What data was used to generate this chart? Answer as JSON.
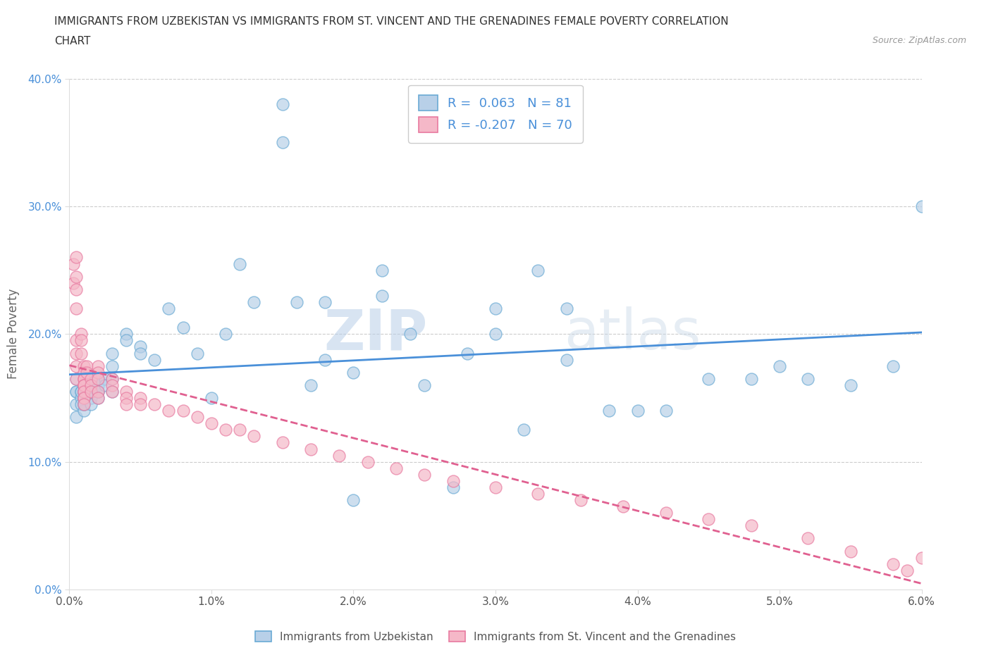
{
  "title_line1": "IMMIGRANTS FROM UZBEKISTAN VS IMMIGRANTS FROM ST. VINCENT AND THE GRENADINES FEMALE POVERTY CORRELATION",
  "title_line2": "CHART",
  "source_text": "Source: ZipAtlas.com",
  "ylabel": "Female Poverty",
  "r_uzbekistan": 0.063,
  "n_uzbekistan": 81,
  "r_stv": -0.207,
  "n_stv": 70,
  "uzbekistan_color": "#b8d0e8",
  "stv_color": "#f5b8c8",
  "uzbekistan_edge_color": "#6aaad4",
  "stv_edge_color": "#e87aa0",
  "uzbekistan_line_color": "#4a90d9",
  "stv_line_color": "#e06090",
  "legend_label_uzbekistan": "Immigrants from Uzbekistan",
  "legend_label_stv": "Immigrants from St. Vincent and the Grenadines",
  "xlim": [
    0.0,
    0.06
  ],
  "ylim": [
    0.0,
    0.4
  ],
  "xticks": [
    0.0,
    0.01,
    0.02,
    0.03,
    0.04,
    0.05,
    0.06
  ],
  "yticks": [
    0.0,
    0.1,
    0.2,
    0.3,
    0.4
  ],
  "watermark_zip": "ZIP",
  "watermark_atlas": "atlas",
  "background_color": "#ffffff",
  "uzb_x": [
    0.0005,
    0.0005,
    0.0005,
    0.0005,
    0.0005,
    0.0008,
    0.0008,
    0.0008,
    0.0008,
    0.001,
    0.001,
    0.001,
    0.001,
    0.001,
    0.001,
    0.001,
    0.001,
    0.001,
    0.001,
    0.0012,
    0.0012,
    0.0012,
    0.0015,
    0.0015,
    0.0015,
    0.0015,
    0.0015,
    0.002,
    0.002,
    0.002,
    0.002,
    0.002,
    0.002,
    0.0025,
    0.0025,
    0.003,
    0.003,
    0.003,
    0.003,
    0.004,
    0.004,
    0.005,
    0.005,
    0.006,
    0.007,
    0.008,
    0.009,
    0.01,
    0.011,
    0.012,
    0.013,
    0.015,
    0.016,
    0.017,
    0.018,
    0.02,
    0.022,
    0.024,
    0.027,
    0.03,
    0.033,
    0.035,
    0.038,
    0.04,
    0.042,
    0.045,
    0.048,
    0.05,
    0.052,
    0.055,
    0.058,
    0.06,
    0.015,
    0.018,
    0.02,
    0.022,
    0.025,
    0.028,
    0.03,
    0.032,
    0.035
  ],
  "uzb_y": [
    0.155,
    0.145,
    0.135,
    0.155,
    0.165,
    0.155,
    0.15,
    0.145,
    0.155,
    0.16,
    0.15,
    0.145,
    0.14,
    0.16,
    0.155,
    0.15,
    0.145,
    0.16,
    0.155,
    0.165,
    0.155,
    0.155,
    0.155,
    0.15,
    0.16,
    0.155,
    0.145,
    0.165,
    0.155,
    0.15,
    0.16,
    0.165,
    0.155,
    0.165,
    0.16,
    0.185,
    0.175,
    0.165,
    0.155,
    0.2,
    0.195,
    0.19,
    0.185,
    0.18,
    0.22,
    0.205,
    0.185,
    0.15,
    0.2,
    0.255,
    0.225,
    0.38,
    0.225,
    0.16,
    0.18,
    0.07,
    0.25,
    0.2,
    0.08,
    0.22,
    0.25,
    0.18,
    0.14,
    0.14,
    0.14,
    0.165,
    0.165,
    0.175,
    0.165,
    0.16,
    0.175,
    0.3,
    0.35,
    0.225,
    0.17,
    0.23,
    0.16,
    0.185,
    0.2,
    0.125,
    0.22
  ],
  "stv_x": [
    0.0003,
    0.0003,
    0.0005,
    0.0005,
    0.0005,
    0.0005,
    0.0005,
    0.0005,
    0.0005,
    0.0005,
    0.0008,
    0.0008,
    0.0008,
    0.001,
    0.001,
    0.001,
    0.001,
    0.001,
    0.001,
    0.001,
    0.001,
    0.001,
    0.001,
    0.001,
    0.001,
    0.0012,
    0.0012,
    0.0015,
    0.0015,
    0.0015,
    0.002,
    0.002,
    0.002,
    0.002,
    0.002,
    0.003,
    0.003,
    0.003,
    0.004,
    0.004,
    0.004,
    0.005,
    0.005,
    0.006,
    0.007,
    0.008,
    0.009,
    0.01,
    0.011,
    0.012,
    0.013,
    0.015,
    0.017,
    0.019,
    0.021,
    0.023,
    0.025,
    0.027,
    0.03,
    0.033,
    0.036,
    0.039,
    0.042,
    0.045,
    0.048,
    0.052,
    0.055,
    0.058,
    0.059,
    0.06
  ],
  "stv_y": [
    0.255,
    0.24,
    0.26,
    0.245,
    0.235,
    0.22,
    0.195,
    0.185,
    0.175,
    0.165,
    0.2,
    0.195,
    0.185,
    0.175,
    0.17,
    0.165,
    0.16,
    0.165,
    0.16,
    0.155,
    0.15,
    0.16,
    0.155,
    0.15,
    0.145,
    0.175,
    0.17,
    0.165,
    0.16,
    0.155,
    0.175,
    0.17,
    0.165,
    0.155,
    0.15,
    0.165,
    0.16,
    0.155,
    0.155,
    0.15,
    0.145,
    0.15,
    0.145,
    0.145,
    0.14,
    0.14,
    0.135,
    0.13,
    0.125,
    0.125,
    0.12,
    0.115,
    0.11,
    0.105,
    0.1,
    0.095,
    0.09,
    0.085,
    0.08,
    0.075,
    0.07,
    0.065,
    0.06,
    0.055,
    0.05,
    0.04,
    0.03,
    0.02,
    0.015,
    0.025
  ]
}
